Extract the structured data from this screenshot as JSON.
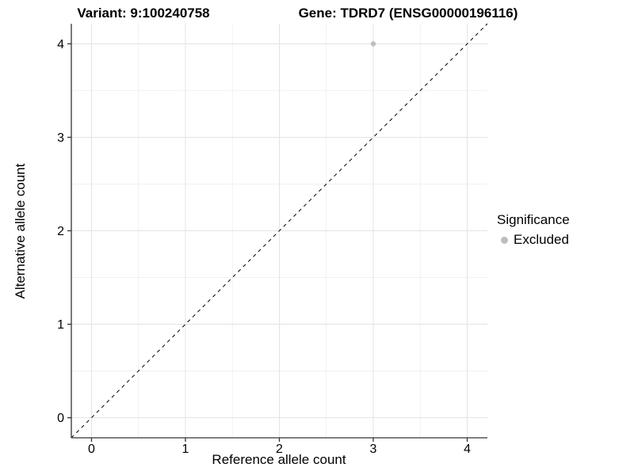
{
  "chart_data": {
    "type": "scatter",
    "title_left": "Variant: 9:100240758",
    "title_right": "Gene: TDRD7 (ENSG00000196116)",
    "xlabel": "Reference allele count",
    "ylabel": "Alternative allele count",
    "xlim": [
      -0.215,
      4.215
    ],
    "ylim": [
      -0.215,
      4.215
    ],
    "x_ticks": [
      0,
      1,
      2,
      3,
      4
    ],
    "y_ticks": [
      0,
      1,
      2,
      3,
      4
    ],
    "grid": {
      "major": true,
      "minor": true
    },
    "reference_line": {
      "kind": "identity",
      "slope": 1,
      "intercept": 0,
      "style": "dashed",
      "color": "#000000"
    },
    "series": [
      {
        "name": "Excluded",
        "color": "#bebebe",
        "point_radius": 3.2,
        "points": [
          {
            "x": 3,
            "y": 4
          }
        ]
      }
    ],
    "legend": {
      "title": "Significance",
      "position": "right",
      "items": [
        {
          "label": "Excluded",
          "color": "#bebebe"
        }
      ]
    },
    "colors": {
      "axis": "#333333",
      "grid_major": "#e3e3e3",
      "grid_minor": "#f1f1f1",
      "text": "#000000",
      "background": "#ffffff"
    }
  }
}
